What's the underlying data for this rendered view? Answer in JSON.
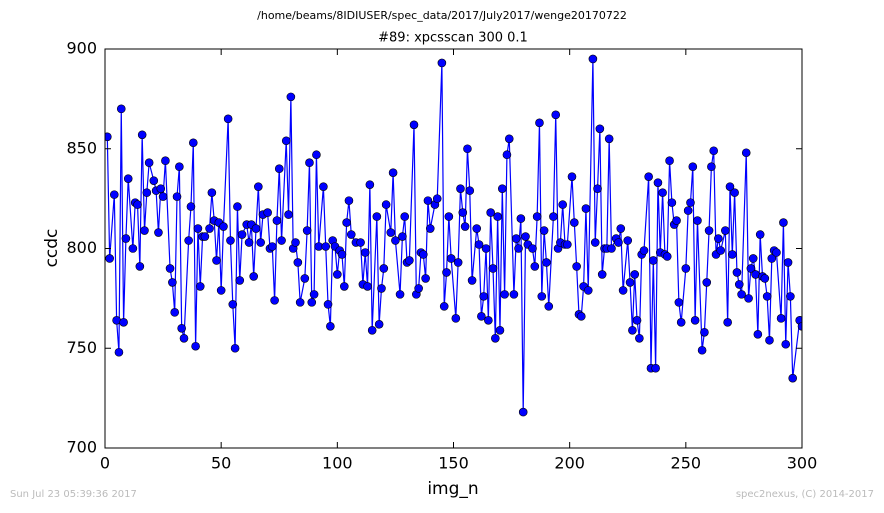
{
  "chart_data": {
    "type": "line",
    "title": "/home/beams/8IDIUSER/spec_data/2017/July2017/wenge20170722",
    "subtitle": "#89: xpcsscan 300 0.1",
    "xlabel": "img_n",
    "ylabel": "ccdc",
    "footer_left": "Sun Jul 23 05:39:36 2017",
    "footer_right": "spec2nexus, (C) 2014-2017",
    "color": "#0000ff",
    "marker": "o",
    "xlim": [
      0,
      300
    ],
    "ylim": [
      700,
      900
    ],
    "xticks": [
      0,
      50,
      100,
      150,
      200,
      250,
      300
    ],
    "yticks": [
      700,
      750,
      800,
      850,
      900
    ],
    "x": [
      1,
      2,
      4,
      5,
      6,
      7,
      8,
      9,
      10,
      12,
      13,
      14,
      15,
      16,
      17,
      18,
      19,
      21,
      22,
      23,
      24,
      25,
      26,
      28,
      29,
      30,
      31,
      32,
      33,
      34,
      36,
      37,
      38,
      39,
      40,
      41,
      42,
      43,
      45,
      46,
      47,
      48,
      49,
      50,
      51,
      53,
      54,
      55,
      56,
      57,
      58,
      59,
      61,
      62,
      63,
      64,
      65,
      66,
      67,
      68,
      70,
      71,
      72,
      73,
      74,
      75,
      76,
      78,
      79,
      80,
      81,
      82,
      83,
      84,
      86,
      87,
      88,
      89,
      90,
      91,
      92,
      94,
      95,
      96,
      97,
      98,
      99,
      100,
      101,
      102,
      103,
      104,
      105,
      106,
      108,
      110,
      111,
      112,
      113,
      114,
      115,
      117,
      118,
      119,
      120,
      121,
      123,
      124,
      125,
      127,
      128,
      129,
      130,
      131,
      133,
      134,
      135,
      136,
      137,
      138,
      139,
      140,
      142,
      143,
      145,
      146,
      147,
      148,
      149,
      151,
      152,
      153,
      154,
      155,
      156,
      157,
      158,
      160,
      161,
      162,
      163,
      164,
      165,
      166,
      167,
      168,
      169,
      170,
      171,
      172,
      173,
      174,
      176,
      177,
      178,
      179,
      180,
      181,
      182,
      184,
      185,
      186,
      187,
      188,
      189,
      190,
      191,
      193,
      194,
      195,
      196,
      197,
      198,
      199,
      201,
      202,
      203,
      204,
      205,
      206,
      207,
      208,
      210,
      211,
      212,
      213,
      214,
      215,
      216,
      217,
      218,
      220,
      221,
      222,
      223,
      225,
      226,
      227,
      228,
      229,
      230,
      231,
      232,
      234,
      235,
      236,
      237,
      238,
      239,
      240,
      241,
      242,
      243,
      244,
      245,
      246,
      247,
      248,
      250,
      251,
      252,
      253,
      254,
      255,
      257,
      258,
      259,
      260,
      261,
      262,
      263,
      264,
      265,
      267,
      268,
      269,
      270,
      271,
      272,
      273,
      274,
      276,
      277,
      278,
      279,
      280,
      281,
      282,
      283,
      284,
      285,
      286,
      287,
      288,
      289,
      291,
      292,
      293,
      294,
      295,
      296,
      299,
      300
    ],
    "values": [
      856,
      795,
      827,
      764,
      748,
      870,
      763,
      805,
      835,
      800,
      823,
      822,
      791,
      857,
      809,
      828,
      843,
      834,
      829,
      808,
      830,
      826,
      844,
      790,
      783,
      768,
      826,
      841,
      760,
      755,
      804,
      821,
      853,
      751,
      810,
      781,
      806,
      806,
      810,
      828,
      814,
      794,
      813,
      779,
      811,
      865,
      804,
      772,
      750,
      821,
      784,
      807,
      812,
      803,
      812,
      786,
      810,
      831,
      803,
      817,
      818,
      800,
      801,
      774,
      814,
      840,
      804,
      854,
      817,
      876,
      800,
      803,
      793,
      773,
      785,
      809,
      843,
      773,
      777,
      847,
      801,
      831,
      801,
      772,
      761,
      804,
      801,
      787,
      799,
      797,
      781,
      813,
      824,
      807,
      803,
      803,
      782,
      798,
      781,
      832,
      759,
      816,
      762,
      780,
      790,
      822,
      808,
      838,
      804,
      777,
      806,
      816,
      793,
      794,
      862,
      777,
      780,
      798,
      797,
      785,
      824,
      810,
      822,
      825,
      893,
      771,
      788,
      816,
      795,
      765,
      793,
      830,
      818,
      811,
      850,
      829,
      784,
      810,
      802,
      766,
      776,
      800,
      764,
      818,
      790,
      755,
      816,
      759,
      830,
      777,
      847,
      855,
      777,
      805,
      800,
      815,
      718,
      806,
      802,
      800,
      791,
      816,
      863,
      776,
      809,
      793,
      771,
      816,
      867,
      800,
      803,
      822,
      802,
      802,
      836,
      813,
      791,
      767,
      766,
      781,
      820,
      779,
      895,
      803,
      830,
      860,
      787,
      800,
      800,
      855,
      800,
      805,
      803,
      810,
      779,
      804,
      783,
      759,
      787,
      764,
      755,
      797,
      799,
      836,
      740,
      794,
      740,
      833,
      798,
      828,
      797,
      796,
      844,
      823,
      812,
      814,
      773,
      763,
      790,
      819,
      823,
      841,
      764,
      814,
      749,
      758,
      783,
      809,
      841,
      849,
      797,
      805,
      799,
      809,
      763,
      831,
      797,
      828,
      788,
      782,
      777,
      848,
      775,
      790,
      795,
      787,
      757,
      807,
      786,
      785,
      776,
      754,
      795,
      799,
      798,
      765,
      813,
      752,
      793,
      776,
      735,
      764,
      761
    ]
  }
}
